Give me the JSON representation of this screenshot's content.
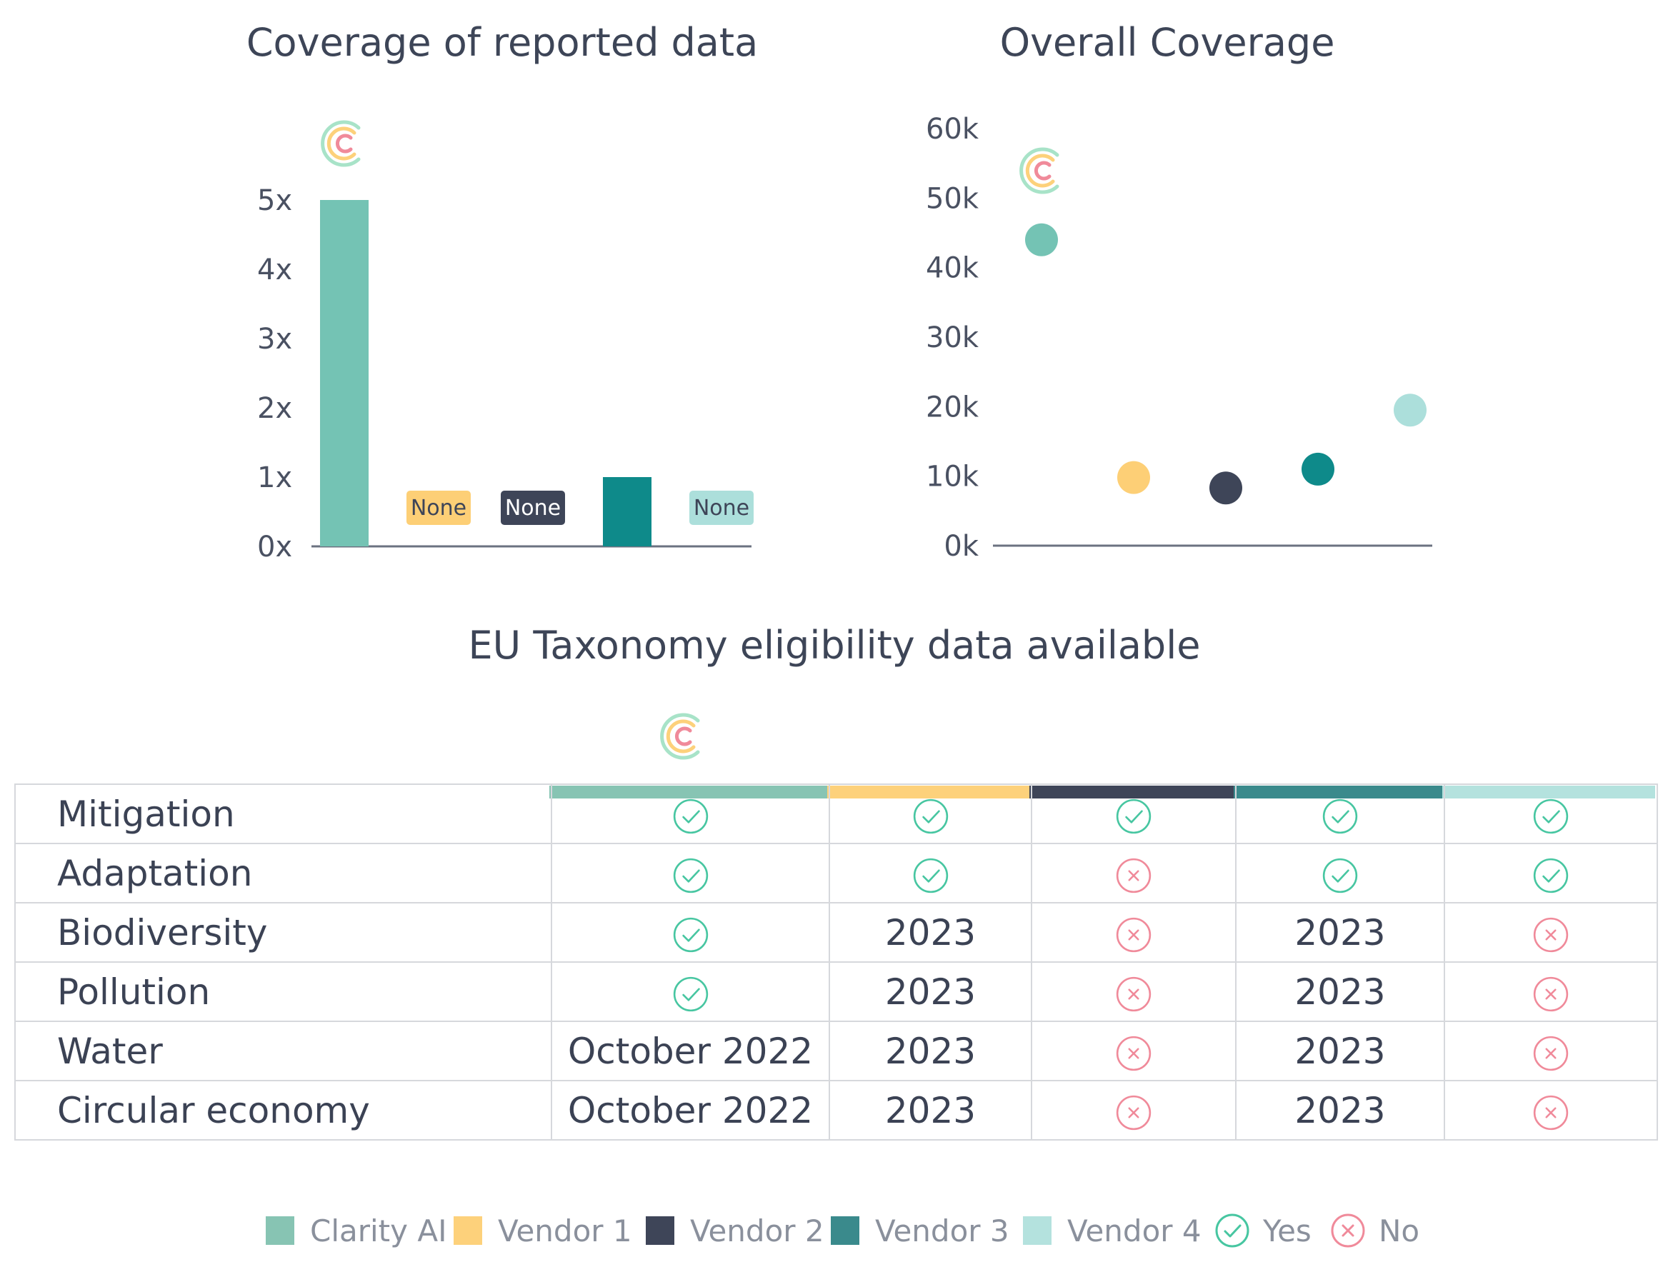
{
  "colors": {
    "clarity": "#74c3b4",
    "vendor1": "#fdcf76",
    "vendor2": "#3e4558",
    "vendor3": "#0e8a8a",
    "vendor4": "#acdfdb",
    "yes": "#47c6a1",
    "no": "#f08a9a",
    "axis": "#6b7280"
  },
  "chart_data": [
    {
      "type": "bar",
      "title": "Coverage of reported data",
      "categories": [
        "Clarity AI",
        "Vendor 1",
        "Vendor 2",
        "Vendor 3",
        "Vendor 4"
      ],
      "values": [
        5,
        null,
        null,
        1,
        null
      ],
      "none_label": "None",
      "yticks": [
        "0x",
        "1x",
        "2x",
        "3x",
        "4x",
        "5x"
      ],
      "ylim": [
        0,
        5
      ]
    },
    {
      "type": "scatter",
      "title": "Overall Coverage",
      "categories": [
        "Clarity AI",
        "Vendor 1",
        "Vendor 2",
        "Vendor 3",
        "Vendor 4"
      ],
      "values": [
        44000,
        9800,
        8300,
        11000,
        19500
      ],
      "yticks": [
        "0k",
        "10k",
        "20k",
        "30k",
        "40k",
        "50k",
        "60k"
      ],
      "ylim": [
        0,
        60000
      ]
    }
  ],
  "table": {
    "title": "EU Taxonomy eligibility data available",
    "rows": [
      {
        "label": "Mitigation",
        "cells": [
          "yes",
          "yes",
          "yes",
          "yes",
          "yes"
        ]
      },
      {
        "label": "Adaptation",
        "cells": [
          "yes",
          "yes",
          "no",
          "yes",
          "yes"
        ]
      },
      {
        "label": "Biodiversity",
        "cells": [
          "yes",
          "2023",
          "no",
          "2023",
          "no"
        ]
      },
      {
        "label": "Pollution",
        "cells": [
          "yes",
          "2023",
          "no",
          "2023",
          "no"
        ]
      },
      {
        "label": "Water",
        "cells": [
          "October 2022",
          "2023",
          "no",
          "2023",
          "no"
        ]
      },
      {
        "label": "Circular economy",
        "cells": [
          "October 2022",
          "2023",
          "no",
          "2023",
          "no"
        ]
      }
    ]
  },
  "legend": {
    "items": [
      {
        "label": "Clarity AI",
        "color": "#87c4b3"
      },
      {
        "label": "Vendor 1",
        "color": "#fdd17b"
      },
      {
        "label": "Vendor 2",
        "color": "#3e4558"
      },
      {
        "label": "Vendor 3",
        "color": "#3a8a8c"
      },
      {
        "label": "Vendor 4",
        "color": "#b4e2de"
      }
    ],
    "yes_label": "Yes",
    "no_label": "No"
  }
}
